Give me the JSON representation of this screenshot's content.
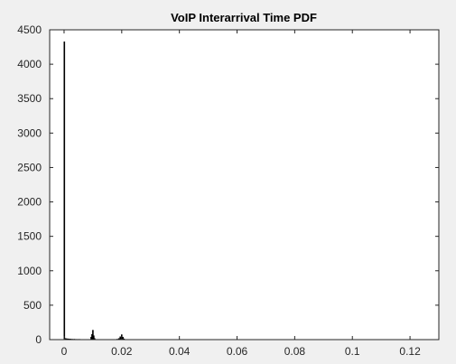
{
  "chart_data": {
    "type": "bar",
    "title": "VoIP Interarrival Time PDF",
    "xlabel": "",
    "ylabel": "",
    "xlim": [
      -0.005,
      0.13
    ],
    "ylim": [
      0,
      4500
    ],
    "x_ticks": [
      0,
      0.02,
      0.04,
      0.06,
      0.08,
      0.1,
      0.12
    ],
    "x_tick_labels": [
      "0",
      "0.02",
      "0.04",
      "0.06",
      "0.08",
      "0.1",
      "0.12"
    ],
    "y_ticks": [
      0,
      500,
      1000,
      1500,
      2000,
      2500,
      3000,
      3500,
      4000,
      4500
    ],
    "y_tick_labels": [
      "0",
      "500",
      "1000",
      "1500",
      "2000",
      "2500",
      "3000",
      "3500",
      "4000",
      "4500"
    ],
    "grid": false,
    "bar_color": "#000000",
    "bins": [
      {
        "x": 0.0001,
        "value": 4330
      },
      {
        "x": 0.0004,
        "value": 20
      },
      {
        "x": 0.0008,
        "value": 18
      },
      {
        "x": 0.0012,
        "value": 15
      },
      {
        "x": 0.0016,
        "value": 14
      },
      {
        "x": 0.002,
        "value": 12
      },
      {
        "x": 0.0024,
        "value": 12
      },
      {
        "x": 0.003,
        "value": 10
      },
      {
        "x": 0.0036,
        "value": 10
      },
      {
        "x": 0.0042,
        "value": 8
      },
      {
        "x": 0.0048,
        "value": 8
      },
      {
        "x": 0.0054,
        "value": 8
      },
      {
        "x": 0.006,
        "value": 6
      },
      {
        "x": 0.0066,
        "value": 5
      },
      {
        "x": 0.0094,
        "value": 40
      },
      {
        "x": 0.0097,
        "value": 80
      },
      {
        "x": 0.01,
        "value": 140
      },
      {
        "x": 0.0103,
        "value": 60
      },
      {
        "x": 0.0106,
        "value": 20
      },
      {
        "x": 0.0184,
        "value": 10
      },
      {
        "x": 0.019,
        "value": 20
      },
      {
        "x": 0.0195,
        "value": 45
      },
      {
        "x": 0.02,
        "value": 75
      },
      {
        "x": 0.0204,
        "value": 40
      },
      {
        "x": 0.0208,
        "value": 15
      }
    ]
  }
}
